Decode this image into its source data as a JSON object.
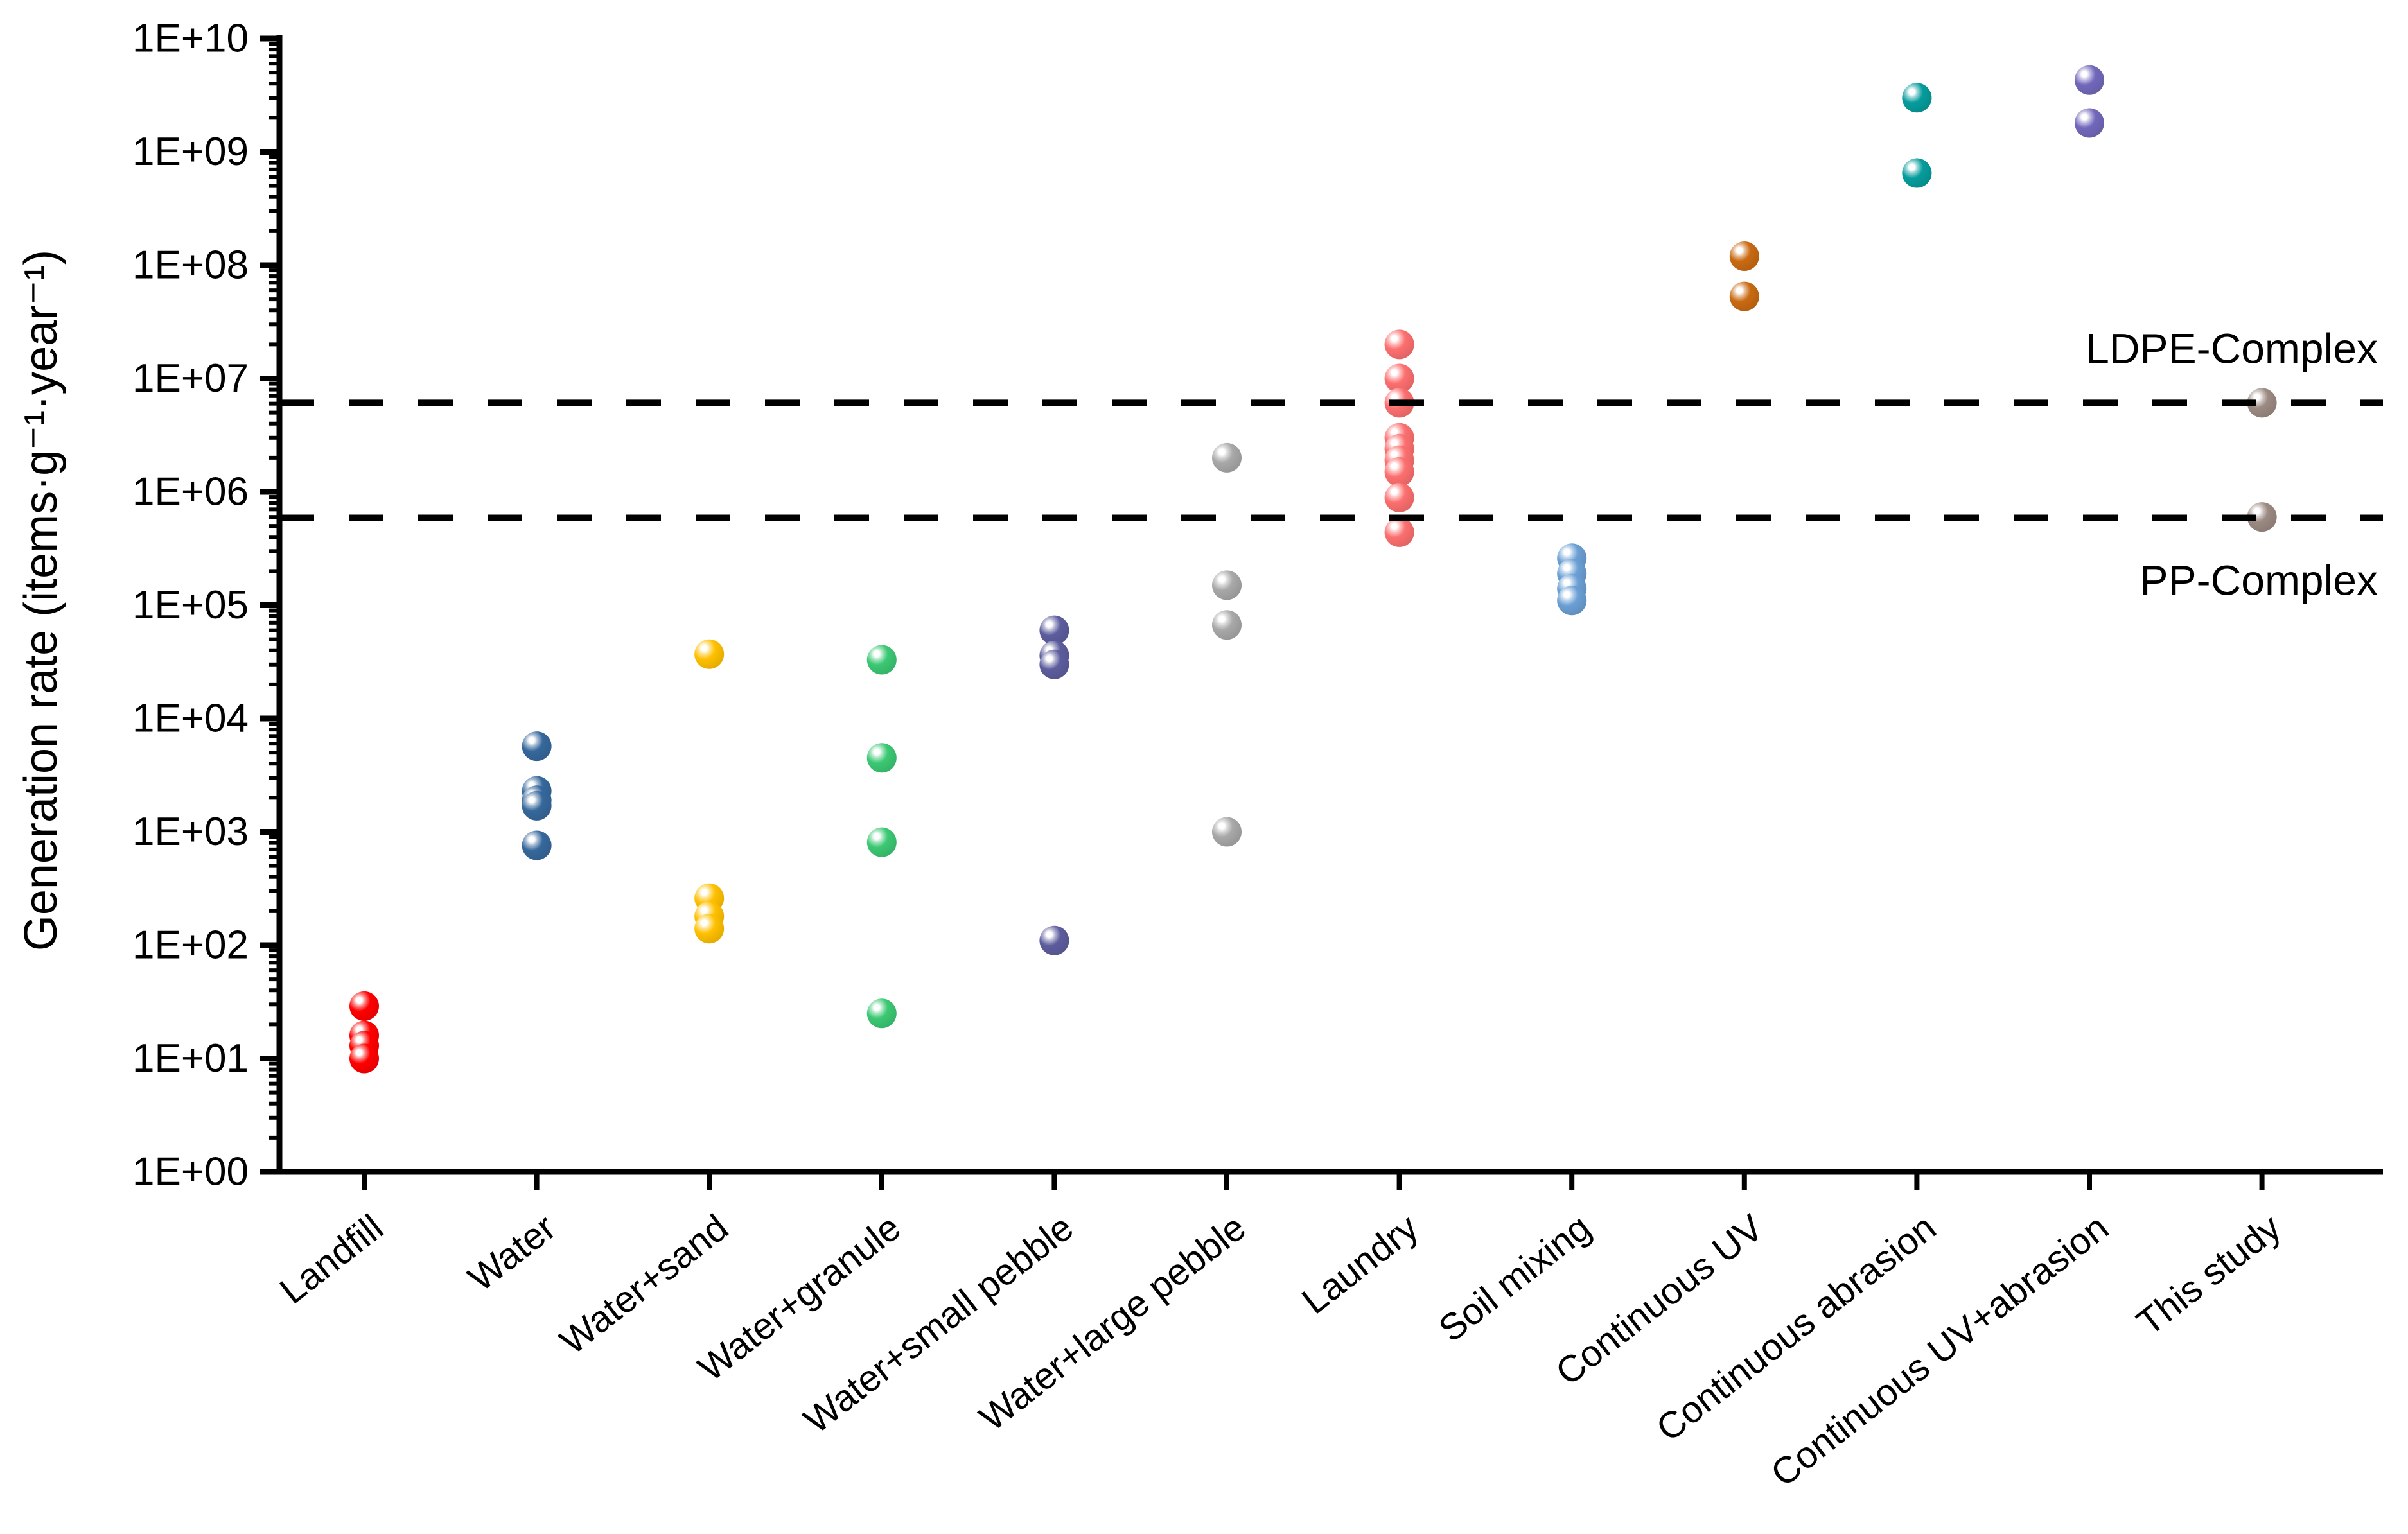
{
  "chart_data": {
    "type": "scatter",
    "title": "",
    "xlabel": "",
    "ylabel": "Generation rate (items·g⁻¹·year⁻¹)",
    "y_axis": {
      "scale": "log",
      "min": 1,
      "max": 10000000000,
      "tick_labels": [
        "1E+00",
        "1E+01",
        "1E+02",
        "1E+03",
        "1E+04",
        "1E+05",
        "1E+06",
        "1E+07",
        "1E+08",
        "1E+09",
        "1E+10"
      ],
      "grid": false,
      "minor_ticks": true
    },
    "categories": [
      "Landfill",
      "Water",
      "Water+sand",
      "Water+granule",
      "Water+small pebble",
      "Water+large pebble",
      "Laundry",
      "Soil mixing",
      "Continuous UV",
      "Continuous abrasion",
      "Continuous UV+abrasion",
      "This study"
    ],
    "legend": "none",
    "series": [
      {
        "name": "Landfill",
        "color": "#ff0000",
        "values": [
          29,
          16,
          13,
          10
        ]
      },
      {
        "name": "Water",
        "color": "#36689c",
        "values": [
          5700,
          2300,
          1900,
          1700,
          760
        ]
      },
      {
        "name": "Water+sand",
        "color": "#ffc000",
        "values": [
          37000,
          260,
          180,
          140
        ]
      },
      {
        "name": "Water+granule",
        "color": "#3bc873",
        "values": [
          33000,
          4500,
          810,
          25
        ]
      },
      {
        "name": "Water+small pebble",
        "color": "#5d5d9e",
        "values": [
          60000,
          36000,
          30000,
          110
        ]
      },
      {
        "name": "Water+large pebble",
        "color": "#a8a8a8",
        "values": [
          2000000,
          150000,
          67000,
          1000
        ]
      },
      {
        "name": "Laundry",
        "color": "#fc6f6f",
        "values": [
          20000000,
          10000000,
          6100000,
          3000000,
          2400000,
          1900000,
          1500000,
          890000,
          440000
        ]
      },
      {
        "name": "Soil mixing",
        "color": "#6b9fd4",
        "values": [
          260000,
          190000,
          140000,
          110000
        ]
      },
      {
        "name": "Continuous UV",
        "color": "#c96a12",
        "values": [
          120000000,
          53000000
        ]
      },
      {
        "name": "Continuous abrasion",
        "color": "#069c9c",
        "values": [
          3000000000,
          650000000
        ]
      },
      {
        "name": "Continuous UV+abrasion",
        "color": "#7268bc",
        "values": [
          4300000000,
          1800000000
        ]
      },
      {
        "name": "This study",
        "color": "#9b8a82",
        "values": [
          6100000,
          600000
        ]
      }
    ],
    "reference_lines": [
      {
        "label": "LDPE-Complex",
        "value": 6100000,
        "style": "dashed",
        "color": "#000000",
        "label_position": "above-right"
      },
      {
        "label": "PP-Complex",
        "value": 590000,
        "style": "dashed",
        "color": "#000000",
        "label_position": "below-right"
      }
    ]
  }
}
